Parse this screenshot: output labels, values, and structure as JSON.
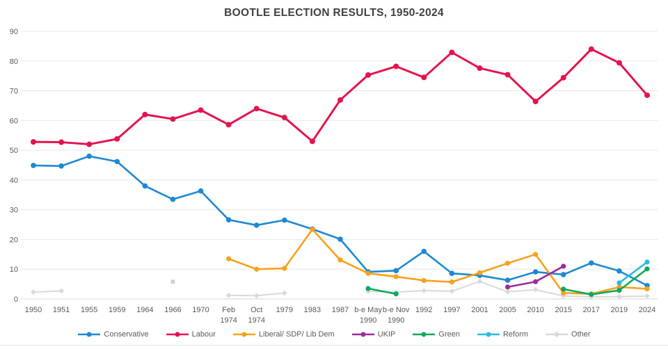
{
  "title": "BOOTLE ELECTION RESULTS, 1950-2024",
  "chart_data": {
    "type": "line",
    "title": "BOOTLE ELECTION RESULTS, 1950-2024",
    "xlabel": "",
    "ylabel": "",
    "ylim": [
      0,
      90
    ],
    "y_ticks": [
      0,
      10,
      20,
      30,
      40,
      50,
      60,
      70,
      80,
      90
    ],
    "grid": "horizontal",
    "legend_position": "bottom",
    "categories": [
      "1950",
      "1951",
      "1955",
      "1959",
      "1964",
      "1966",
      "1970",
      "Feb 1974",
      "Oct 1974",
      "1979",
      "1983",
      "1987",
      "b-e May 1990",
      "b-e Nov 1990",
      "1992",
      "1997",
      "2001",
      "2005",
      "2010",
      "2015",
      "2017",
      "2019",
      "2024"
    ],
    "x_label_lines": [
      [
        "1950"
      ],
      [
        "1951"
      ],
      [
        "1955"
      ],
      [
        "1959"
      ],
      [
        "1964"
      ],
      [
        "1966"
      ],
      [
        "1970"
      ],
      [
        "Feb",
        "1974"
      ],
      [
        "Oct",
        "1974"
      ],
      [
        "1979"
      ],
      [
        "1983"
      ],
      [
        "1987"
      ],
      [
        "b-e May",
        "1990"
      ],
      [
        "b-e Nov",
        "1990"
      ],
      [
        "1992"
      ],
      [
        "1997"
      ],
      [
        "2001"
      ],
      [
        "2005"
      ],
      [
        "2010"
      ],
      [
        "2015"
      ],
      [
        "2017"
      ],
      [
        "2019"
      ],
      [
        "2024"
      ]
    ],
    "colors": {
      "gridline": "#e8e8e8",
      "axis_line": "#d4d4d4",
      "tick_text": "#595959",
      "title_text": "#414141"
    },
    "series": [
      {
        "id": "conservative",
        "legend": "Conservative",
        "color": "#1e88d2",
        "marker": "circle",
        "width": 2.6,
        "dot_r": 3.8,
        "z": 1,
        "values": [
          44.9,
          44.7,
          48.0,
          46.2,
          38.0,
          33.5,
          36.3,
          26.6,
          24.8,
          26.5,
          23.5,
          20.1,
          9.1,
          9.5,
          16.0,
          8.6,
          7.9,
          6.3,
          9.1,
          8.2,
          12.1,
          9.4,
          4.5
        ]
      },
      {
        "id": "labour",
        "legend": "Labour",
        "color": "#e4134f",
        "marker": "circle",
        "width": 3,
        "dot_r": 4,
        "z": 2,
        "values": [
          52.8,
          52.7,
          52.0,
          53.8,
          62.0,
          60.5,
          63.5,
          58.6,
          64.0,
          61.0,
          53.0,
          66.9,
          75.3,
          78.2,
          74.5,
          82.9,
          77.6,
          75.4,
          66.4,
          74.4,
          84.0,
          79.4,
          68.5
        ]
      },
      {
        "id": "liberal",
        "legend": "Liberal/ SDP/ Lib Dem",
        "color": "#f7a11c",
        "marker": "circle",
        "width": 2.6,
        "dot_r": 3.6,
        "z": 3,
        "values": [
          null,
          null,
          null,
          null,
          null,
          null,
          null,
          13.5,
          10.0,
          10.3,
          23.4,
          13.1,
          8.6,
          7.5,
          6.2,
          5.7,
          8.8,
          12.0,
          15.0,
          2.0,
          1.7,
          4.0,
          3.4
        ]
      },
      {
        "id": "ukip",
        "legend": "UKIP",
        "color": "#9b2d9b",
        "marker": "circle",
        "width": 2.6,
        "dot_r": 3.6,
        "z": 4,
        "values": [
          null,
          null,
          null,
          null,
          null,
          null,
          null,
          null,
          null,
          null,
          null,
          null,
          null,
          null,
          null,
          null,
          null,
          4.0,
          5.8,
          11.0,
          null,
          null,
          null
        ]
      },
      {
        "id": "green",
        "legend": "Green",
        "color": "#10a85c",
        "marker": "circle",
        "width": 2.6,
        "dot_r": 3.6,
        "z": 5,
        "values": [
          null,
          null,
          null,
          null,
          null,
          null,
          null,
          null,
          null,
          null,
          null,
          null,
          3.5,
          1.7,
          null,
          null,
          null,
          null,
          null,
          3.3,
          1.5,
          2.9,
          10.1
        ]
      },
      {
        "id": "reform",
        "legend": "Reform",
        "color": "#2bbcd9",
        "marker": "circle",
        "width": 2.6,
        "dot_r": 3.6,
        "z": 6,
        "values": [
          null,
          null,
          null,
          null,
          null,
          null,
          null,
          null,
          null,
          null,
          null,
          null,
          null,
          null,
          null,
          null,
          null,
          null,
          null,
          null,
          null,
          5.4,
          12.4
        ]
      },
      {
        "id": "other",
        "legend": "Other",
        "color": "#d9d9d9",
        "marker": "diamond",
        "width": 2,
        "dot_r": 2.8,
        "z": 0,
        "values": [
          2.3,
          2.7,
          null,
          null,
          null,
          5.8,
          null,
          1.2,
          1.1,
          2.0,
          null,
          null,
          2.5,
          2.3,
          2.8,
          2.6,
          5.9,
          2.4,
          3.1,
          1.0,
          0.7,
          0.8,
          1.0
        ]
      }
    ]
  }
}
